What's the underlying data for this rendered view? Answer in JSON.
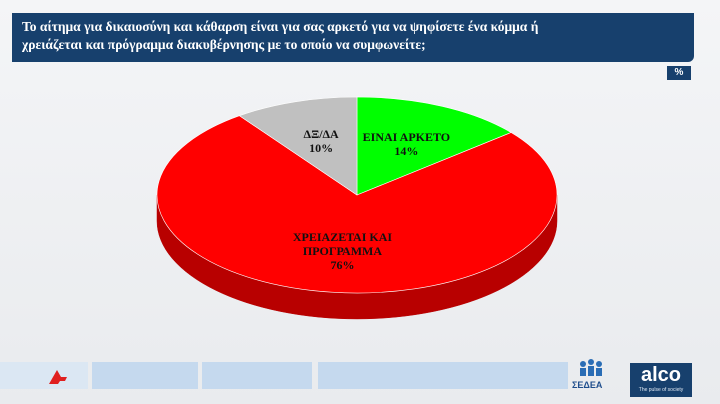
{
  "header": {
    "title": "Το αίτημα για δικαιοσύνη και κάθαρση είναι για σας αρκετό για να  ψηφίσετε ένα κόμμα ή  χρειάζεται και πρόγραμμα διακυβέρνησης με το οποίο να συμφωνείτε;",
    "unit_badge": "%"
  },
  "chart_data": {
    "type": "pie",
    "categories": [
      "ΕΙΝΑΙ ΑΡΚΕΤΟ",
      "ΧΡΕΙΑΖΕΤΑΙ ΚΑΙ ΠΡΟΓΡΑΜΜΑ",
      "ΔΞ/ΔΑ"
    ],
    "values": [
      14,
      76,
      10
    ],
    "value_labels": [
      "14%",
      "76%",
      "10%"
    ],
    "colors": [
      "#00ff00",
      "#ff0000",
      "#c0c0c0"
    ]
  },
  "footer": {
    "sedea": "ΣΕΔΕΑ",
    "alco": "alco",
    "alco_tagline": "The pulse of society"
  }
}
